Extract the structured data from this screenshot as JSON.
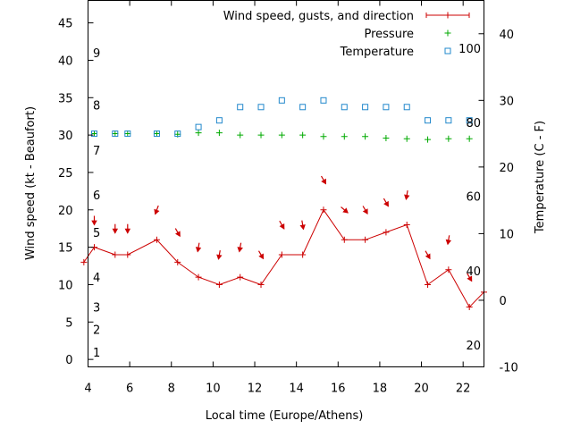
{
  "chart_data": {
    "type": "line",
    "xlabel": "Local time (Europe/Athens)",
    "ylabel_left": "Wind speed (kt - Beaufort)",
    "ylabel_right": "Temperature (C - F)",
    "xlim": [
      4,
      23
    ],
    "xticks": [
      "4",
      "6",
      "8",
      "10",
      "12",
      "14",
      "16",
      "18",
      "20",
      "22"
    ],
    "ylim_left": [
      -1,
      48
    ],
    "yticks_left": [
      "0",
      "5",
      "10",
      "15",
      "20",
      "25",
      "30",
      "35",
      "40",
      "45"
    ],
    "ylim_right": [
      -10,
      45
    ],
    "yticks_right": [
      "-10",
      "0",
      "10",
      "20",
      "30",
      "40"
    ],
    "beaufort_labels": [
      {
        "label": "1",
        "kt": 1
      },
      {
        "label": "2",
        "kt": 4
      },
      {
        "label": "3",
        "kt": 7
      },
      {
        "label": "4",
        "kt": 11
      },
      {
        "label": "5",
        "kt": 17
      },
      {
        "label": "6",
        "kt": 22
      },
      {
        "label": "7",
        "kt": 28
      },
      {
        "label": "8",
        "kt": 34
      },
      {
        "label": "9",
        "kt": 41
      }
    ],
    "fahrenheit_labels": [
      {
        "label": "20",
        "temp_c": -6.7
      },
      {
        "label": "40",
        "temp_c": 4.4
      },
      {
        "label": "60",
        "temp_c": 15.6
      },
      {
        "label": "80",
        "temp_c": 26.7
      },
      {
        "label": "100",
        "temp_c": 37.8
      }
    ],
    "legend_position": "top-right",
    "series": [
      {
        "name": "Wind speed, gusts, and direction",
        "color": "#cc0000",
        "style": "line-with-plus-markers",
        "x": [
          3.8,
          4.3,
          5.3,
          5.9,
          7.3,
          8.3,
          9.3,
          10.3,
          11.3,
          12.3,
          13.3,
          14.3,
          15.3,
          16.3,
          17.3,
          18.3,
          19.3,
          20.3,
          21.3,
          22.3,
          23.0
        ],
        "y": [
          13,
          15,
          14,
          14,
          16,
          13,
          11,
          10,
          11,
          10,
          14,
          14,
          20,
          16,
          16,
          17,
          18,
          10,
          12,
          7,
          9
        ]
      },
      {
        "name": "Pressure",
        "color": "#00aa00",
        "style": "plus-markers",
        "x": [
          4.3,
          5.3,
          5.9,
          7.3,
          8.3,
          9.3,
          10.3,
          11.3,
          12.3,
          13.3,
          14.3,
          15.3,
          16.3,
          17.3,
          18.3,
          19.3,
          20.3,
          21.3,
          22.3
        ],
        "y": [
          30.2,
          30.2,
          30.2,
          30.2,
          30.1,
          30.3,
          30.3,
          30.0,
          30.0,
          30.0,
          30.0,
          29.8,
          29.8,
          29.8,
          29.6,
          29.5,
          29.4,
          29.5,
          29.5
        ]
      },
      {
        "name": "Temperature",
        "color": "#2288cc",
        "style": "open-square-markers",
        "axis": "right",
        "x": [
          4.3,
          5.3,
          5.9,
          7.3,
          8.3,
          9.3,
          10.3,
          11.3,
          12.3,
          13.3,
          14.3,
          15.3,
          16.3,
          17.3,
          18.3,
          19.3,
          20.3,
          21.3,
          22.3
        ],
        "y": [
          25,
          25,
          25,
          25,
          25,
          26,
          27,
          29,
          29,
          30,
          29,
          30,
          29,
          29,
          29,
          29,
          27,
          27,
          27
        ]
      }
    ],
    "wind_arrows": [
      {
        "x": 4.3,
        "kt": 18.6,
        "angle": 90
      },
      {
        "x": 5.3,
        "kt": 17.5,
        "angle": 90
      },
      {
        "x": 5.9,
        "kt": 17.5,
        "angle": 90
      },
      {
        "x": 7.3,
        "kt": 20.0,
        "angle": 110
      },
      {
        "x": 8.3,
        "kt": 17.0,
        "angle": 60
      },
      {
        "x": 9.3,
        "kt": 15.0,
        "angle": 100
      },
      {
        "x": 10.3,
        "kt": 14.0,
        "angle": 100
      },
      {
        "x": 11.3,
        "kt": 15.0,
        "angle": 100
      },
      {
        "x": 12.3,
        "kt": 14.0,
        "angle": 60
      },
      {
        "x": 13.3,
        "kt": 18.0,
        "angle": 60
      },
      {
        "x": 14.3,
        "kt": 18.0,
        "angle": 80
      },
      {
        "x": 15.3,
        "kt": 24.0,
        "angle": 60
      },
      {
        "x": 16.3,
        "kt": 20.0,
        "angle": 40
      },
      {
        "x": 17.3,
        "kt": 20.0,
        "angle": 60
      },
      {
        "x": 18.3,
        "kt": 21.0,
        "angle": 60
      },
      {
        "x": 19.3,
        "kt": 22.0,
        "angle": 100
      },
      {
        "x": 20.3,
        "kt": 14.0,
        "angle": 60
      },
      {
        "x": 21.3,
        "kt": 16.0,
        "angle": 100
      },
      {
        "x": 22.3,
        "kt": 11.0,
        "angle": 60
      }
    ]
  }
}
